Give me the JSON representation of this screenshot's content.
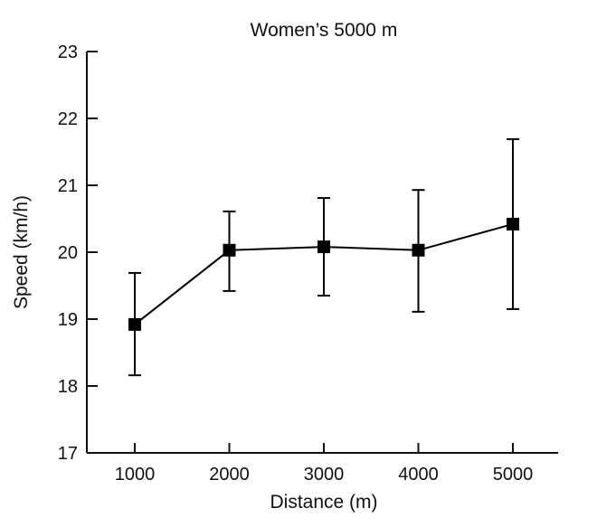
{
  "chart_data": {
    "type": "line",
    "title": "Women’s 5000 m",
    "xlabel": "Distance (m)",
    "ylabel": "Speed (km/h)",
    "x": [
      1000,
      2000,
      3000,
      4000,
      5000
    ],
    "x_tick_labels": [
      "1000",
      "2000",
      "3000",
      "4000",
      "5000"
    ],
    "y_tick_labels": [
      "17",
      "18",
      "19",
      "20",
      "21",
      "22",
      "23"
    ],
    "y_ticks": [
      17,
      18,
      19,
      20,
      21,
      22,
      23
    ],
    "ylim": [
      17,
      23
    ],
    "grid": false,
    "series": [
      {
        "name": "Women’s 5000 m",
        "values": [
          18.92,
          20.03,
          20.08,
          20.03,
          20.42
        ],
        "error_upper": [
          19.69,
          20.61,
          20.81,
          20.93,
          21.69
        ],
        "error_lower": [
          18.16,
          19.42,
          19.35,
          19.11,
          19.15
        ],
        "marker": "square",
        "color": "#000000"
      }
    ]
  }
}
